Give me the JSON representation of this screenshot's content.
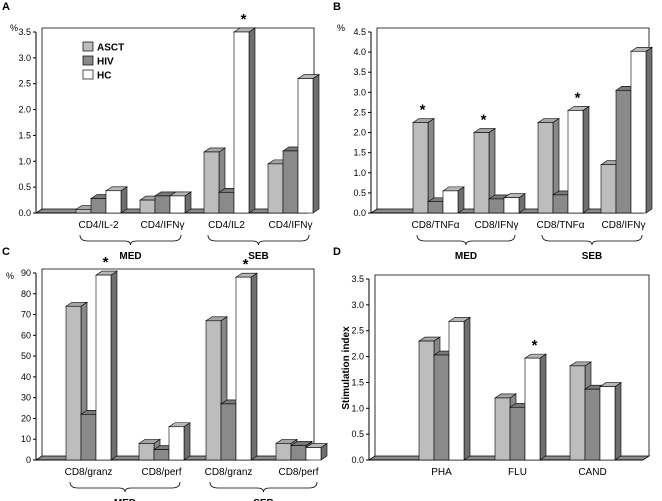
{
  "colors": {
    "ASCT": "#bdbdbd",
    "HIV": "#8a8a8a",
    "HC": "#ffffff"
  },
  "legend": [
    "ASCT",
    "HIV",
    "HC"
  ],
  "chart_data": [
    {
      "panel": "A",
      "type": "bar",
      "ylabel": "%",
      "ylim": [
        0,
        3.5
      ],
      "yticks": [
        "0.0",
        "0.5",
        "1.0",
        "1.5",
        "2.0",
        "2.5",
        "3.0",
        "3.5"
      ],
      "categories": [
        "CD4/IL-2",
        "CD4/IFNγ",
        "CD4/IL2",
        "CD4/IFNγ"
      ],
      "groups": [
        {
          "label": "MED",
          "span": [
            0,
            1
          ]
        },
        {
          "label": "SEB",
          "span": [
            2,
            3
          ]
        }
      ],
      "series": [
        {
          "name": "ASCT",
          "values": [
            0.07,
            0.25,
            1.18,
            0.95
          ]
        },
        {
          "name": "HIV",
          "values": [
            0.28,
            0.33,
            0.4,
            1.2
          ]
        },
        {
          "name": "HC",
          "values": [
            0.43,
            0.33,
            3.5,
            2.6
          ]
        }
      ],
      "stars": [
        {
          "category": 2,
          "series": "HC"
        }
      ]
    },
    {
      "panel": "B",
      "type": "bar",
      "ylabel": "%",
      "ylim": [
        0,
        4.5
      ],
      "yticks": [
        "0.0",
        "0.5",
        "1.0",
        "1.5",
        "2.0",
        "2.5",
        "3.0",
        "3.5",
        "4.0",
        "4.5"
      ],
      "categories": [
        "CD8/TNFα",
        "CD8/IFNγ",
        "CD8/TNFα",
        "CD8/IFNγ"
      ],
      "groups": [
        {
          "label": "MED",
          "span": [
            0,
            1
          ]
        },
        {
          "label": "SEB",
          "span": [
            2,
            3
          ]
        }
      ],
      "series": [
        {
          "name": "ASCT",
          "values": [
            2.25,
            2.0,
            2.25,
            1.2
          ]
        },
        {
          "name": "HIV",
          "values": [
            0.28,
            0.35,
            0.45,
            3.05
          ]
        },
        {
          "name": "HC",
          "values": [
            0.55,
            0.38,
            2.55,
            4.02
          ]
        }
      ],
      "stars": [
        {
          "category": 0,
          "series": "ASCT"
        },
        {
          "category": 1,
          "series": "ASCT"
        },
        {
          "category": 2,
          "series": "HC"
        }
      ]
    },
    {
      "panel": "C",
      "type": "bar",
      "ylabel": "%",
      "ylim": [
        0,
        90
      ],
      "yticks": [
        "0",
        "10",
        "20",
        "30",
        "40",
        "50",
        "60",
        "70",
        "80",
        "90"
      ],
      "categories": [
        "CD8/granz",
        "CD8/perf",
        "CD8/granz",
        "CD8/perf"
      ],
      "groups": [
        {
          "label": "MED",
          "span": [
            0,
            1
          ]
        },
        {
          "label": "SEB",
          "span": [
            2,
            3
          ]
        }
      ],
      "series": [
        {
          "name": "ASCT",
          "values": [
            74,
            8,
            67,
            8
          ]
        },
        {
          "name": "HIV",
          "values": [
            22,
            5,
            27,
            7
          ]
        },
        {
          "name": "HC",
          "values": [
            89,
            16,
            88,
            6
          ]
        }
      ],
      "stars": [
        {
          "category": 0,
          "series": "HC"
        },
        {
          "category": 2,
          "series": "HC"
        }
      ]
    },
    {
      "panel": "D",
      "type": "bar",
      "ylabel": "Stimulation index",
      "ylim": [
        0,
        3.5
      ],
      "yticks": [
        "0.0",
        "0.5",
        "1.0",
        "1.5",
        "2.0",
        "2.5",
        "3.0",
        "3.5"
      ],
      "categories": [
        "PHA",
        "FLU",
        "CAND"
      ],
      "groups": [],
      "series": [
        {
          "name": "ASCT",
          "values": [
            2.3,
            1.2,
            1.82
          ]
        },
        {
          "name": "HIV",
          "values": [
            2.03,
            1.02,
            1.37
          ]
        },
        {
          "name": "HC",
          "values": [
            2.68,
            1.97,
            1.42
          ]
        }
      ],
      "stars": [
        {
          "category": 1,
          "series": "HC"
        }
      ]
    }
  ]
}
